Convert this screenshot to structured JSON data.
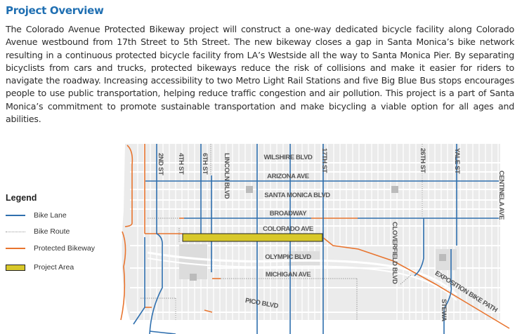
{
  "header": {
    "title": "Project Overview"
  },
  "description": "The Colorado Avenue Protected Bikeway project will construct a one-way dedicated bicycle facility along Colorado Avenue westbound from 17th Street to 5th Street. The new bikeway closes a gap in Santa Monica’s bike network resulting in a continuous protected bicycle facility from LA’s Westside all the way to Santa Monica Pier. By separating bicyclists from cars and trucks, protected bikeways reduce the risk of collisions and make it easier for riders to navigate the roadway. Increasing accessibility to two Metro Light Rail Stations and five Big Blue Bus stops encourages people to use public transportation, helping reduce traffic congestion and air pollution.  This project is a part of Santa Monica’s commitment to promote sustainable transportation and make bicycling a viable option for all ages and abilities.",
  "legend": {
    "title": "Legend",
    "items": [
      {
        "label": "Bike Lane",
        "color": "#2f6fae"
      },
      {
        "label": "Bike Route",
        "color": "#999999"
      },
      {
        "label": "Protected Bikeway",
        "color": "#e8742e"
      },
      {
        "label": "Project Area",
        "color": "#d8c82a"
      }
    ]
  },
  "map": {
    "streets_ew": [
      "WILSHIRE BLVD",
      "ARIZONA AVE",
      "SANTA MONICA BLVD",
      "BROADWAY",
      "COLORADO AVE",
      "OLYMPIC BLVD",
      "MICHIGAN AVE",
      "PICO BLVD",
      "EXPOSITION BIKE PATH"
    ],
    "streets_ns": [
      "2ND ST",
      "4TH ST",
      "6TH ST",
      "LINCOLN BLVD",
      "17TH ST",
      "26TH ST",
      "YALE ST",
      "CLOVERFIELD BLVD",
      "CENTINELA AVE",
      "STEWA"
    ]
  }
}
